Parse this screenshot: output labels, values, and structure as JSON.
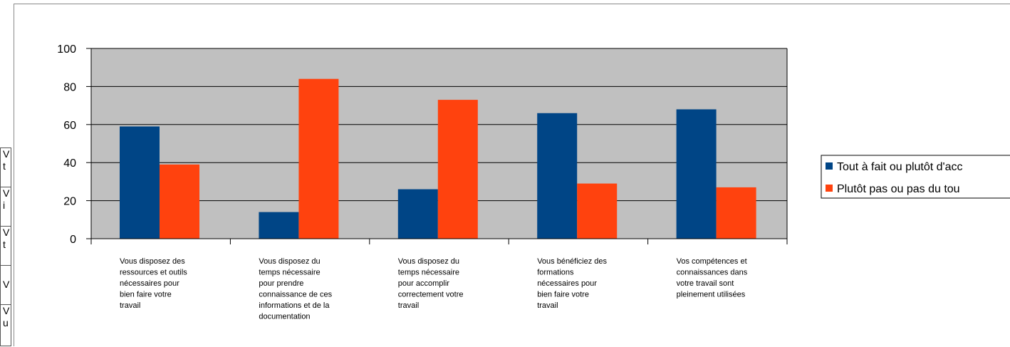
{
  "background_table": {
    "cells": [
      {
        "line1": "V",
        "line2": "t"
      },
      {
        "line1": "V",
        "line2": "i"
      },
      {
        "line1": "V",
        "line2": "t"
      },
      {
        "line1": "V",
        "line2": ""
      },
      {
        "line1": "V",
        "line2": "u"
      }
    ]
  },
  "chart_data": {
    "type": "bar",
    "categories": [
      [
        "Vous disposez des",
        "ressources et outils",
        "nécessaires pour",
        "bien faire votre",
        "travail"
      ],
      [
        "Vous disposez du",
        "temps nécessaire",
        "pour prendre",
        "connaissance de ces",
        "informations et de la",
        "documentation"
      ],
      [
        "Vous disposez du",
        "temps nécessaire",
        "pour accomplir",
        "correctement votre",
        "travail"
      ],
      [
        "Vous bénéficiez des",
        "formations",
        "nécessaires pour",
        "bien faire votre",
        "travail"
      ],
      [
        "Vos compétences et",
        "connaissances dans",
        "votre travail sont",
        "pleinement utilisées"
      ]
    ],
    "series": [
      {
        "name": "Tout à fait ou plutôt d'acc",
        "color": "#004586",
        "values": [
          59,
          14,
          26,
          66,
          68
        ]
      },
      {
        "name": "Plutôt pas ou pas du tou",
        "color": "#ff420e",
        "values": [
          39,
          84,
          73,
          29,
          27
        ]
      }
    ],
    "ylim": [
      0,
      100
    ],
    "yticks": [
      0,
      20,
      40,
      60,
      80,
      100
    ],
    "grid": true,
    "plot_background": "#c0c0c0",
    "legend_position": "right"
  }
}
